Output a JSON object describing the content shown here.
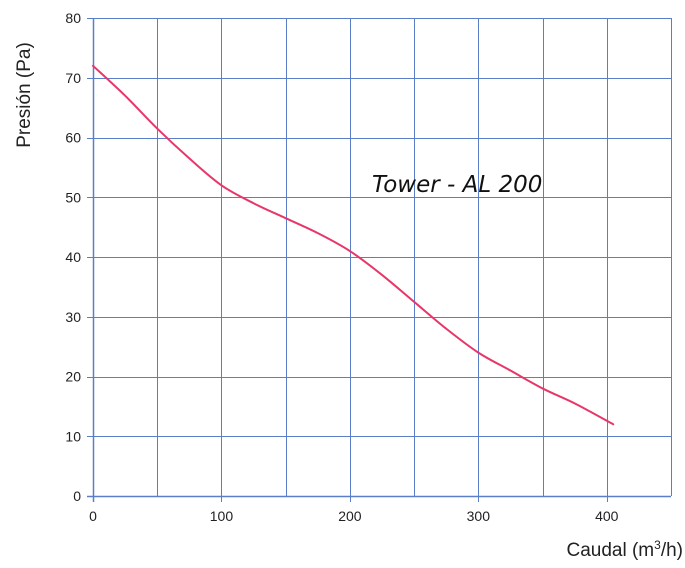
{
  "chart_data": {
    "type": "line",
    "xlabel": "Caudal (m³/h)",
    "xlabel_parts": {
      "prefix": "Caudal (m",
      "sup": "3",
      "suffix": "/h)"
    },
    "ylabel": "Presión (Pa)",
    "xlim": [
      0,
      450
    ],
    "ylim": [
      0,
      80
    ],
    "x_ticks": [
      0,
      100,
      200,
      300,
      400
    ],
    "y_ticks": [
      0,
      10,
      20,
      30,
      40,
      50,
      60,
      70,
      80
    ],
    "x_tick_labels": [
      "0",
      "100",
      "200",
      "300",
      "400"
    ],
    "y_tick_labels": [
      "0",
      "10",
      "20",
      "30",
      "40",
      "50",
      "60",
      "70",
      "80"
    ],
    "grid": true,
    "grid_x_step": 50,
    "grid_y_step": 10,
    "annotation": "Tower - AL 200",
    "colors": {
      "series": "#e8366a",
      "grid": "#5b7ec8",
      "text": "#222222"
    },
    "series": [
      {
        "color": "#e8366a",
        "x": [
          0,
          25,
          50,
          75,
          100,
          125,
          150,
          175,
          200,
          225,
          250,
          275,
          300,
          325,
          350,
          375,
          405
        ],
        "y": [
          72,
          67,
          61.5,
          56.5,
          52,
          49,
          46.5,
          44,
          41,
          37,
          32.5,
          28,
          24,
          21,
          18,
          15.5,
          12
        ]
      }
    ]
  }
}
